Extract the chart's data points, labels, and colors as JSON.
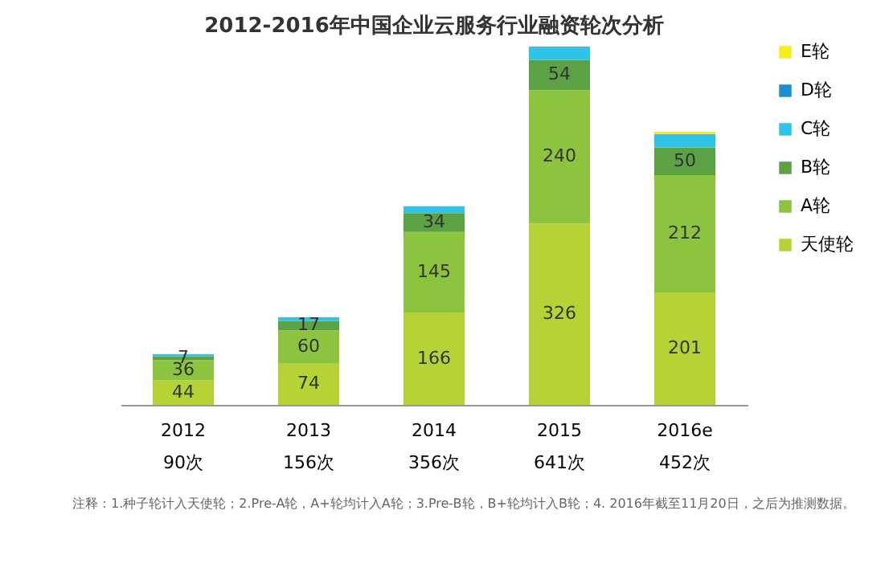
{
  "chart_data": {
    "type": "bar",
    "stacked": true,
    "title": "2012-2016年中国企业云服务行业融资轮次分析",
    "categories": [
      "2012\n90次",
      "2013\n156次",
      "2014\n356次",
      "2015\n641次",
      "2016e\n452次"
    ],
    "series": [
      {
        "name": "天使轮",
        "color": "#b5d334",
        "values": [
          44,
          74,
          166,
          326,
          201
        ],
        "value_labels": [
          "44",
          "74",
          "166",
          "326",
          "201"
        ]
      },
      {
        "name": "A轮",
        "color": "#8cc43f",
        "values": [
          36,
          60,
          145,
          240,
          212
        ],
        "value_labels": [
          "36",
          "60",
          "145",
          "240",
          "212"
        ]
      },
      {
        "name": "B轮",
        "color": "#5ba244",
        "values": [
          7,
          17,
          34,
          54,
          50
        ],
        "value_labels": [
          "7",
          "17",
          "34",
          "54",
          "50"
        ]
      },
      {
        "name": "C轮",
        "color": "#2ec4e8",
        "values": [
          4,
          5,
          11,
          22,
          23
        ],
        "value_labels": [
          null,
          null,
          null,
          null,
          null
        ]
      },
      {
        "name": "D轮",
        "color": "#1a8fd0",
        "values": [
          0,
          1,
          1,
          2,
          1
        ],
        "value_labels": [
          null,
          null,
          null,
          null,
          null
        ]
      },
      {
        "name": "E轮",
        "color": "#f5ee1a",
        "values": [
          0,
          0,
          0,
          0,
          4
        ],
        "value_labels": [
          null,
          null,
          null,
          null,
          null
        ]
      }
    ],
    "legend": "right",
    "grid": false,
    "annotations": [
      "注释：1.种子轮计入天使轮；2.Pre-A轮，A+轮均计入A轮；3.Pre-B轮，B+轮均计入B轮；4. 2016年截至11月20日，之后为推测数据。"
    ]
  }
}
